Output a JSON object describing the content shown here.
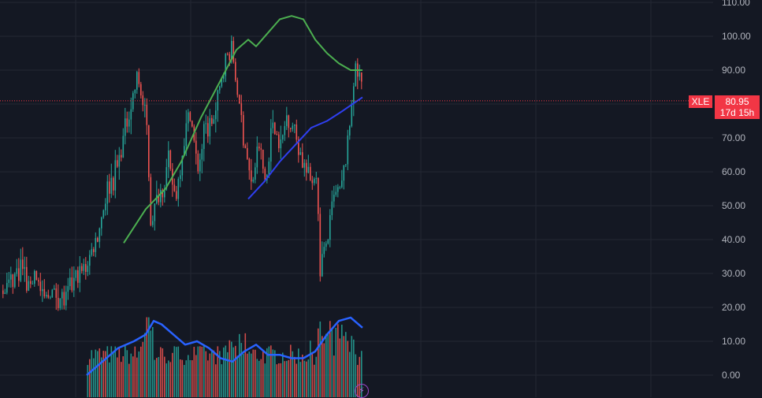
{
  "chart_data": {
    "type": "candlestick",
    "symbol": "XLE",
    "last_price": "80.95",
    "countdown": "17d 15h",
    "y_ticks": [
      "110.00",
      "100.00",
      "90.00",
      "80.00",
      "70.00",
      "60.00",
      "50.00",
      "40.00",
      "30.00",
      "20.00",
      "10.00",
      "0.00"
    ],
    "ylim": [
      0,
      110
    ],
    "grid": true,
    "colors": {
      "background": "#141823",
      "grid": "#232733",
      "up": "#26a69a",
      "down": "#ef5350",
      "ma_green": "#4caf50",
      "ma_blue": "#2f3ff0",
      "volume_ma": "#2962ff",
      "price_line": "#f23645"
    },
    "price_anchors": [
      [
        0,
        25
      ],
      [
        0.03,
        29
      ],
      [
        0.05,
        33
      ],
      [
        0.07,
        26
      ],
      [
        0.09,
        31
      ],
      [
        0.11,
        22
      ],
      [
        0.14,
        25
      ],
      [
        0.17,
        22
      ],
      [
        0.2,
        28
      ],
      [
        0.23,
        32
      ],
      [
        0.26,
        40
      ],
      [
        0.29,
        55
      ],
      [
        0.32,
        62
      ],
      [
        0.35,
        78
      ],
      [
        0.375,
        88
      ],
      [
        0.4,
        72
      ],
      [
        0.41,
        45
      ],
      [
        0.43,
        52
      ],
      [
        0.46,
        62
      ],
      [
        0.48,
        52
      ],
      [
        0.5,
        68
      ],
      [
        0.52,
        78
      ],
      [
        0.54,
        60
      ],
      [
        0.56,
        72
      ],
      [
        0.59,
        76
      ],
      [
        0.61,
        90
      ],
      [
        0.635,
        97
      ],
      [
        0.655,
        80
      ],
      [
        0.67,
        70
      ],
      [
        0.69,
        55
      ],
      [
        0.71,
        68
      ],
      [
        0.73,
        56
      ],
      [
        0.75,
        76
      ],
      [
        0.77,
        66
      ],
      [
        0.79,
        78
      ],
      [
        0.81,
        72
      ],
      [
        0.83,
        64
      ],
      [
        0.85,
        57
      ],
      [
        0.87,
        60
      ],
      [
        0.88,
        32
      ],
      [
        0.9,
        40
      ],
      [
        0.92,
        52
      ],
      [
        0.94,
        55
      ],
      [
        0.96,
        70
      ],
      [
        0.975,
        90
      ],
      [
        0.99,
        88
      ],
      [
        1,
        82
      ]
    ],
    "ma_green": [
      [
        157,
        39
      ],
      [
        185,
        49
      ],
      [
        210,
        55
      ],
      [
        230,
        63
      ],
      [
        255,
        76
      ],
      [
        280,
        87
      ],
      [
        300,
        96
      ],
      [
        315,
        99
      ],
      [
        325,
        97
      ],
      [
        340,
        101
      ],
      [
        355,
        105
      ],
      [
        370,
        106
      ],
      [
        385,
        105
      ],
      [
        400,
        99
      ],
      [
        415,
        95
      ],
      [
        430,
        92
      ],
      [
        445,
        90
      ],
      [
        460,
        90
      ]
    ],
    "ma_blue": [
      [
        315,
        52
      ],
      [
        335,
        57
      ],
      [
        355,
        63
      ],
      [
        375,
        68
      ],
      [
        395,
        73
      ],
      [
        415,
        75
      ],
      [
        435,
        78
      ],
      [
        460,
        82
      ]
    ],
    "volume_ma": [
      [
        110,
        0
      ],
      [
        130,
        4
      ],
      [
        150,
        8
      ],
      [
        170,
        10
      ],
      [
        185,
        12
      ],
      [
        195,
        16
      ],
      [
        205,
        15
      ],
      [
        220,
        12
      ],
      [
        235,
        9
      ],
      [
        250,
        10
      ],
      [
        265,
        8
      ],
      [
        280,
        5
      ],
      [
        295,
        4
      ],
      [
        310,
        7
      ],
      [
        325,
        9
      ],
      [
        340,
        6
      ],
      [
        355,
        6
      ],
      [
        370,
        5
      ],
      [
        385,
        5
      ],
      [
        400,
        7
      ],
      [
        415,
        12
      ],
      [
        430,
        16
      ],
      [
        445,
        17
      ],
      [
        460,
        14
      ]
    ]
  }
}
